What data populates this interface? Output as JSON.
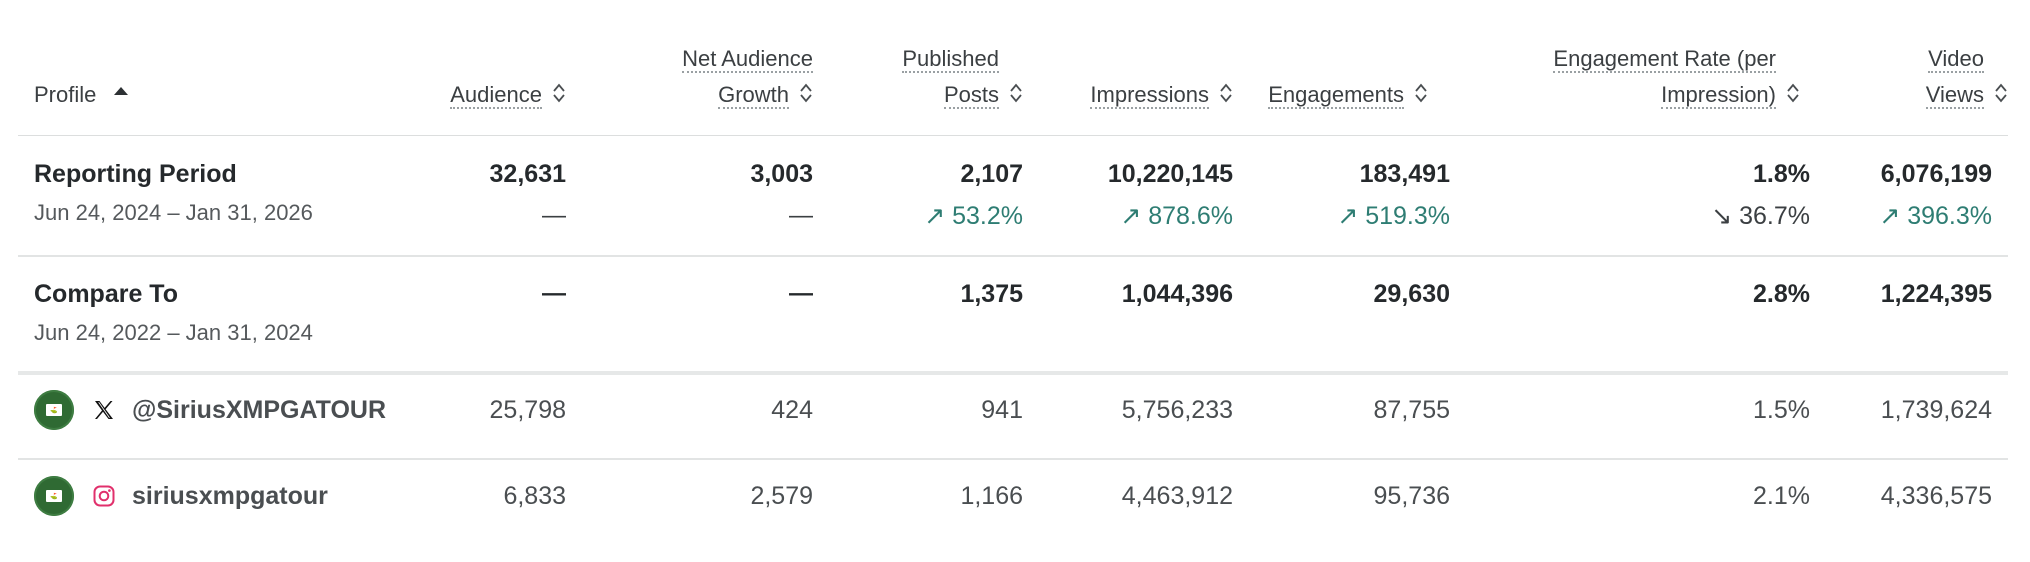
{
  "columns": {
    "profile": {
      "label": "Profile"
    },
    "audience": {
      "label": "Audience"
    },
    "net_growth": {
      "line1": "Net Audience",
      "line2": "Growth"
    },
    "published": {
      "line1": "Published",
      "line2": "Posts"
    },
    "impressions": {
      "label": "Impressions"
    },
    "engagements": {
      "label": "Engagements"
    },
    "eng_rate": {
      "line1": "Engagement Rate (per",
      "line2": "Impression)"
    },
    "video_views": {
      "line1": "Video",
      "line2": "Views"
    }
  },
  "reporting": {
    "title": "Reporting Period",
    "range": "Jun 24, 2024 – Jan 31, 2026",
    "audience": "32,631",
    "net_growth": "3,003",
    "published": "2,107",
    "impressions": "10,220,145",
    "engagements": "183,491",
    "eng_rate": "1.8%",
    "video_views": "6,076,199",
    "audience_delta": "—",
    "net_growth_delta": "—",
    "published_delta": "↗ 53.2%",
    "impressions_delta": "↗ 878.6%",
    "engagements_delta": "↗ 519.3%",
    "eng_rate_delta": "↘ 36.7%",
    "video_views_delta": "↗ 396.3%"
  },
  "compare": {
    "title": "Compare To",
    "range": "Jun 24, 2022 – Jan 31, 2024",
    "audience": "—",
    "net_growth": "—",
    "published": "1,375",
    "impressions": "1,044,396",
    "engagements": "29,630",
    "eng_rate": "2.8%",
    "video_views": "1,224,395"
  },
  "profiles": [
    {
      "network": "x-icon",
      "handle": "@SiriusXMPGATOUR",
      "audience": "25,798",
      "net_growth": "424",
      "published": "941",
      "impressions": "5,756,233",
      "engagements": "87,755",
      "eng_rate": "1.5%",
      "video_views": "1,739,624"
    },
    {
      "network": "instagram-icon",
      "handle": "siriusxmpgatour",
      "audience": "6,833",
      "net_growth": "2,579",
      "published": "1,166",
      "impressions": "4,463,912",
      "engagements": "95,736",
      "eng_rate": "2.1%",
      "video_views": "4,336,575"
    }
  ],
  "colors": {
    "positive": "#2e7d73",
    "instagram": "#e1306c",
    "avatar": "#2f6a33"
  }
}
